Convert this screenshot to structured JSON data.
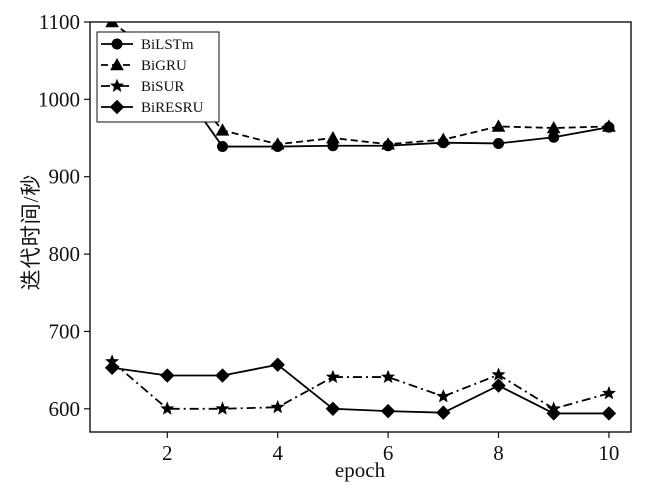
{
  "chart_data": {
    "type": "line",
    "xlabel": "epoch",
    "ylabel": "迭代时间/秒",
    "xlim": [
      0.6,
      10.4
    ],
    "ylim": [
      570,
      1100
    ],
    "xticks": [
      2,
      4,
      6,
      8,
      10
    ],
    "yticks": [
      600,
      700,
      800,
      900,
      1000,
      1100
    ],
    "grid": false,
    "legend_position": "top-left",
    "x": [
      1,
      2,
      3,
      4,
      5,
      6,
      7,
      8,
      9,
      10
    ],
    "series": [
      {
        "name": "BiLSTm",
        "marker": "circle",
        "linestyle": "solid",
        "values": [
          1080,
          1040,
          939,
          939,
          940,
          940,
          944,
          943,
          951,
          964
        ]
      },
      {
        "name": "BiGRU",
        "marker": "triangle",
        "linestyle": "dashed",
        "values": [
          1100,
          1045,
          960,
          942,
          950,
          942,
          948,
          965,
          963,
          965
        ]
      },
      {
        "name": "BiSUR",
        "marker": "star",
        "linestyle": "dashdot",
        "values": [
          661,
          600,
          600,
          602,
          641,
          641,
          616,
          644,
          600,
          620
        ]
      },
      {
        "name": "BiRESRU",
        "marker": "diamond",
        "linestyle": "solid",
        "values": [
          653,
          643,
          643,
          657,
          600,
          597,
          595,
          630,
          594,
          594
        ]
      }
    ]
  }
}
